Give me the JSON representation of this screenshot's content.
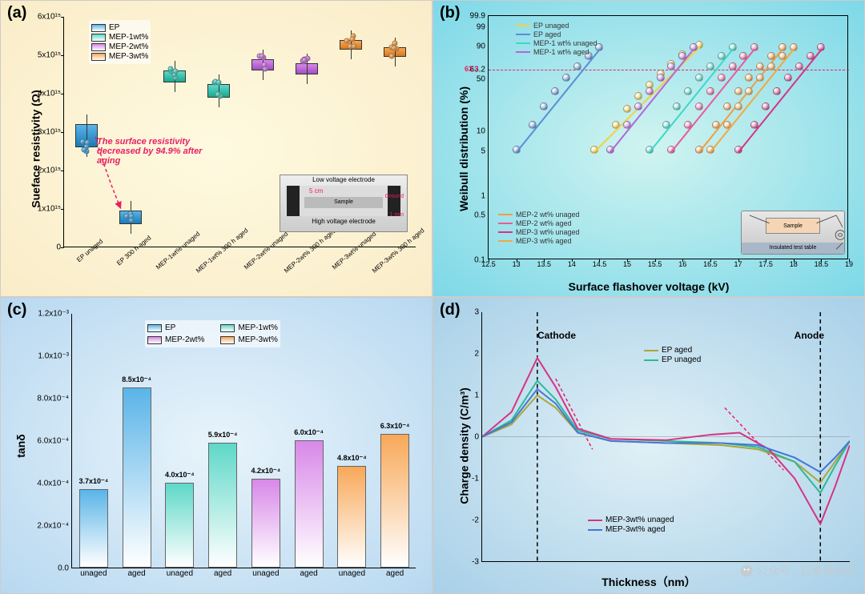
{
  "watermark": "公众号 · 石墨烯研究",
  "panel_a": {
    "label": "(a)",
    "type": "boxplot",
    "ylabel": "Sueface resistivity (Ω)",
    "ylim": [
      0,
      6000000000000000.0
    ],
    "yticks": [
      "0",
      "1x10¹⁵",
      "2x10¹⁵",
      "3x10¹⁵",
      "4x10¹⁵",
      "5x10¹⁵",
      "6x10¹⁵"
    ],
    "categories": [
      "EP unaged",
      "EP 300 h aged",
      "MEP-1wt% unaged",
      "MEP-1wt% 300 h aged",
      "MEP-2wt% unaged",
      "MEP-2wt% 300 h aged",
      "MEP-3wt% unaged",
      "MEP-3wt% 300 h aged"
    ],
    "boxes": [
      {
        "q1": 2600000000000000.0,
        "q3": 3200000000000000.0,
        "color": "#5ab4e8",
        "grad": "#1a7bb8"
      },
      {
        "q1": 600000000000000.0,
        "q3": 950000000000000.0,
        "color": "#5ab4e8",
        "grad": "#1a7bb8"
      },
      {
        "q1": 4300000000000000.0,
        "q3": 4600000000000000.0,
        "color": "#5ed8c8",
        "grad": "#1aa890"
      },
      {
        "q1": 3900000000000000.0,
        "q3": 4250000000000000.0,
        "color": "#5ed8c8",
        "grad": "#1aa890"
      },
      {
        "q1": 4600000000000000.0,
        "q3": 4900000000000000.0,
        "color": "#d888e8",
        "grad": "#a050c0"
      },
      {
        "q1": 4500000000000000.0,
        "q3": 4800000000000000.0,
        "color": "#d888e8",
        "grad": "#a050c0"
      },
      {
        "q1": 5150000000000000.0,
        "q3": 5400000000000000.0,
        "color": "#f8a858",
        "grad": "#d87818"
      },
      {
        "q1": 4950000000000000.0,
        "q3": 5200000000000000.0,
        "color": "#f8a858",
        "grad": "#d87818"
      }
    ],
    "legend": [
      {
        "label": "EP",
        "color": "#5ab4e8"
      },
      {
        "label": "MEP-1wt%",
        "color": "#5ed8c8"
      },
      {
        "label": "MEP-2wt%",
        "color": "#d888e8"
      },
      {
        "label": "MEP-3wt%",
        "color": "#f8a858"
      }
    ],
    "annotation_text": "The surface resistivity decreased by 94.9% after aging",
    "annotation_color": "#e91e63",
    "inset_labels": {
      "low": "Low voltage electrode",
      "high": "High voltage electrode",
      "ground": "Ground",
      "sample": "Sample",
      "dim1": "5 cm",
      "dim2": "1 mm"
    }
  },
  "panel_b": {
    "label": "(b)",
    "type": "scatter",
    "xlabel": "Surface flashover voltage (kV)",
    "ylabel": "Weibull distribution (%)",
    "xlim": [
      12.5,
      19
    ],
    "xticks": [
      "12.5",
      "13",
      "13.5",
      "14",
      "14.5",
      "15",
      "15.5",
      "16",
      "16.5",
      "17",
      "17.5",
      "18",
      "18.5",
      "19"
    ],
    "yticks": [
      0.1,
      0.5,
      1,
      5,
      10,
      50,
      63.2,
      90,
      99,
      99.9
    ],
    "ref_line": 63.2,
    "ref_color": "#e91e63",
    "series": [
      {
        "label": "EP unaged",
        "color": "#f4d03f",
        "pts": [
          [
            14.4,
            5
          ],
          [
            14.8,
            12
          ],
          [
            15.0,
            20
          ],
          [
            15.2,
            30
          ],
          [
            15.4,
            42
          ],
          [
            15.6,
            55
          ],
          [
            15.8,
            68
          ],
          [
            16.0,
            80
          ],
          [
            16.3,
            90
          ]
        ]
      },
      {
        "label": "EP aged",
        "color": "#5b8dd6",
        "pts": [
          [
            13.0,
            5
          ],
          [
            13.3,
            12
          ],
          [
            13.5,
            22
          ],
          [
            13.7,
            35
          ],
          [
            13.9,
            50
          ],
          [
            14.1,
            65
          ],
          [
            14.3,
            78
          ],
          [
            14.5,
            88
          ]
        ]
      },
      {
        "label": "MEP-1 wt% unaged",
        "color": "#3dd8c8",
        "pts": [
          [
            15.4,
            5
          ],
          [
            15.7,
            12
          ],
          [
            15.9,
            22
          ],
          [
            16.1,
            35
          ],
          [
            16.3,
            50
          ],
          [
            16.5,
            65
          ],
          [
            16.7,
            78
          ],
          [
            16.9,
            88
          ]
        ]
      },
      {
        "label": "MEP-1 wt% aged",
        "color": "#b565d8",
        "pts": [
          [
            14.7,
            5
          ],
          [
            15.0,
            12
          ],
          [
            15.2,
            22
          ],
          [
            15.4,
            35
          ],
          [
            15.6,
            50
          ],
          [
            15.8,
            65
          ],
          [
            16.0,
            78
          ],
          [
            16.2,
            88
          ]
        ]
      },
      {
        "label": "MEP-2 wt% unaged",
        "color": "#f49c3f",
        "pts": [
          [
            16.3,
            5
          ],
          [
            16.6,
            12
          ],
          [
            16.8,
            22
          ],
          [
            17.0,
            35
          ],
          [
            17.2,
            50
          ],
          [
            17.4,
            65
          ],
          [
            17.6,
            78
          ],
          [
            17.8,
            88
          ]
        ]
      },
      {
        "label": "MEP-2 wt% aged",
        "color": "#e85a9c",
        "pts": [
          [
            15.8,
            5
          ],
          [
            16.1,
            12
          ],
          [
            16.3,
            22
          ],
          [
            16.5,
            35
          ],
          [
            16.7,
            50
          ],
          [
            16.9,
            65
          ],
          [
            17.1,
            78
          ],
          [
            17.3,
            88
          ]
        ]
      },
      {
        "label": "MEP-3 wt% unaged",
        "color": "#d63384",
        "pts": [
          [
            17.0,
            5
          ],
          [
            17.3,
            12
          ],
          [
            17.5,
            22
          ],
          [
            17.7,
            35
          ],
          [
            17.9,
            50
          ],
          [
            18.1,
            65
          ],
          [
            18.3,
            78
          ],
          [
            18.5,
            88
          ]
        ]
      },
      {
        "label": "MEP-3 wt% aged",
        "color": "#f4a73f",
        "pts": [
          [
            16.5,
            5
          ],
          [
            16.8,
            12
          ],
          [
            17.0,
            22
          ],
          [
            17.2,
            35
          ],
          [
            17.4,
            50
          ],
          [
            17.6,
            65
          ],
          [
            17.8,
            78
          ],
          [
            18.0,
            88
          ]
        ]
      }
    ],
    "inset_label": "Insulated test table",
    "inset_sample": "Sample"
  },
  "panel_c": {
    "label": "(c)",
    "type": "bar",
    "ylabel": "tanδ",
    "ylim": [
      0,
      0.0012
    ],
    "yticks": [
      "0.0",
      "2.0x10⁻⁴",
      "4.0x10⁻⁴",
      "6.0x10⁻⁴",
      "8.0x10⁻⁴",
      "1.0x10⁻³",
      "1.2x10⁻³"
    ],
    "categories": [
      "unaged",
      "aged",
      "unaged",
      "aged",
      "unaged",
      "aged",
      "unaged",
      "aged"
    ],
    "bars": [
      {
        "v": 0.00037,
        "label": "3.7x10⁻⁴",
        "color": "#5ab4e8"
      },
      {
        "v": 0.00085,
        "label": "8.5x10⁻⁴",
        "color": "#5ab4e8"
      },
      {
        "v": 0.0004,
        "label": "4.0x10⁻⁴",
        "color": "#5ed8c8"
      },
      {
        "v": 0.00059,
        "label": "5.9x10⁻⁴",
        "color": "#5ed8c8"
      },
      {
        "v": 0.00042,
        "label": "4.2x10⁻⁴",
        "color": "#d888e8"
      },
      {
        "v": 0.0006,
        "label": "6.0x10⁻⁴",
        "color": "#d888e8"
      },
      {
        "v": 0.00048,
        "label": "4.8x10⁻⁴",
        "color": "#f8a858"
      },
      {
        "v": 0.00063,
        "label": "6.3x10⁻⁴",
        "color": "#f8a858"
      }
    ],
    "legend": [
      {
        "label": "EP",
        "color": "#5ab4e8"
      },
      {
        "label": "MEP-1wt%",
        "color": "#5ed8c8"
      },
      {
        "label": "MEP-2wt%",
        "color": "#d888e8"
      },
      {
        "label": "MEP-3wt%",
        "color": "#f8a858"
      }
    ]
  },
  "panel_d": {
    "label": "(d)",
    "type": "line",
    "xlabel": "Thickness（nm）",
    "ylabel": "Charge density (C/m³)",
    "ylim": [
      -3,
      3
    ],
    "yticks": [
      "-3",
      "-2",
      "-1",
      "0",
      "1",
      "2",
      "3"
    ],
    "cathode_label": "Cathode",
    "anode_label": "Anode",
    "legend": [
      {
        "label": "EP aged",
        "color": "#a8a838"
      },
      {
        "label": "EP unaged",
        "color": "#2db898"
      },
      {
        "label": "MEP-3wt% unaged",
        "color": "#d63384"
      },
      {
        "label": "MEP-3wt%   aged",
        "color": "#4575d6"
      }
    ],
    "curves": {
      "ep_aged": {
        "color": "#a8a838",
        "pts": [
          [
            0,
            0
          ],
          [
            8,
            0.3
          ],
          [
            15,
            1.0
          ],
          [
            20,
            0.7
          ],
          [
            26,
            0.1
          ],
          [
            35,
            -0.1
          ],
          [
            50,
            -0.15
          ],
          [
            65,
            -0.2
          ],
          [
            75,
            -0.3
          ],
          [
            85,
            -0.6
          ],
          [
            92,
            -1.1
          ],
          [
            96,
            -0.6
          ],
          [
            100,
            -0.1
          ]
        ]
      },
      "ep_unaged": {
        "color": "#2db898",
        "pts": [
          [
            0,
            0
          ],
          [
            8,
            0.4
          ],
          [
            15,
            1.35
          ],
          [
            20,
            0.9
          ],
          [
            26,
            0.15
          ],
          [
            35,
            -0.05
          ],
          [
            50,
            -0.1
          ],
          [
            65,
            -0.15
          ],
          [
            75,
            -0.25
          ],
          [
            85,
            -0.6
          ],
          [
            92,
            -1.35
          ],
          [
            96,
            -0.7
          ],
          [
            100,
            -0.1
          ]
        ]
      },
      "mep_unaged": {
        "color": "#d63384",
        "pts": [
          [
            0,
            0
          ],
          [
            8,
            0.6
          ],
          [
            15,
            1.9
          ],
          [
            20,
            1.2
          ],
          [
            26,
            0.2
          ],
          [
            35,
            -0.05
          ],
          [
            50,
            -0.08
          ],
          [
            62,
            0.05
          ],
          [
            70,
            0.1
          ],
          [
            78,
            -0.3
          ],
          [
            85,
            -1.0
          ],
          [
            92,
            -2.1
          ],
          [
            96,
            -1.2
          ],
          [
            100,
            -0.2
          ]
        ]
      },
      "mep_aged": {
        "color": "#4575d6",
        "pts": [
          [
            0,
            0
          ],
          [
            8,
            0.35
          ],
          [
            15,
            1.15
          ],
          [
            20,
            0.8
          ],
          [
            26,
            0.1
          ],
          [
            35,
            -0.1
          ],
          [
            50,
            -0.15
          ],
          [
            65,
            -0.15
          ],
          [
            75,
            -0.2
          ],
          [
            85,
            -0.5
          ],
          [
            92,
            -0.85
          ],
          [
            96,
            -0.5
          ],
          [
            100,
            -0.1
          ]
        ]
      }
    }
  }
}
